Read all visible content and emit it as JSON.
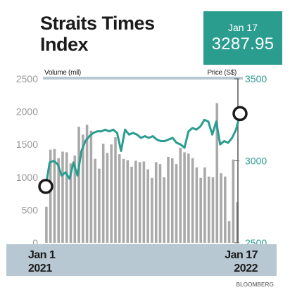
{
  "title_lines": [
    "Straits Times",
    "Index"
  ],
  "callout": {
    "date": "Jan 17",
    "value": "3287.95"
  },
  "source": "BLOOMBERG",
  "colors": {
    "accent": "#2a9d8f",
    "bars": "#a9a9a9",
    "band": "#b8c8d3",
    "axis_left": "#9a9a9a"
  },
  "chart_data": {
    "type": "bar",
    "series": [
      {
        "name": "Volume (mil)",
        "type": "bar",
        "axis": "left",
        "values": [
          550,
          1420,
          1430,
          1290,
          1390,
          1380,
          1210,
          1330,
          1770,
          1650,
          1800,
          1710,
          1280,
          1130,
          1510,
          1370,
          1500,
          1610,
          1350,
          1280,
          1260,
          1160,
          1250,
          1230,
          1240,
          1120,
          990,
          1230,
          1200,
          1000,
          1310,
          1290,
          1200,
          1450,
          1380,
          1360,
          1290,
          1150,
          990,
          1150,
          1010,
          1000,
          2130,
          1060,
          1010,
          330,
          1270,
          620
        ]
      },
      {
        "name": "Price (S$)",
        "type": "line",
        "axis": "right",
        "values": [
          2844,
          2990,
          3000,
          2980,
          2910,
          2930,
          2890,
          2990,
          2910,
          3060,
          3120,
          3150,
          3170,
          3180,
          3180,
          3190,
          3180,
          3190,
          3170,
          3060,
          3190,
          3160,
          3170,
          3160,
          3140,
          3150,
          3140,
          3150,
          3130,
          3120,
          3120,
          3130,
          3140,
          3110,
          3100,
          3080,
          3180,
          3200,
          3190,
          3210,
          3250,
          3240,
          3160,
          3240,
          3100,
          3120,
          3110,
          3140,
          3190,
          3288
        ]
      }
    ],
    "left_axis": {
      "ylim": [
        0,
        2500
      ],
      "ticks": [
        "0",
        "500",
        "1000",
        "1500",
        "2000",
        "2500"
      ]
    },
    "right_axis": {
      "ylim": [
        2500,
        3500
      ],
      "ticks": [
        "2500",
        "3000",
        "3500"
      ]
    },
    "x_axis": {
      "start": [
        "Jan 1",
        "2021"
      ],
      "end": [
        "Jan 17",
        "2022"
      ]
    },
    "highlighted_points": [
      "start",
      "end"
    ]
  }
}
